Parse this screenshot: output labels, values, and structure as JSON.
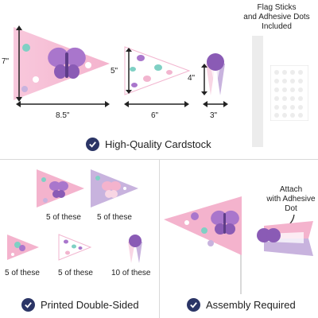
{
  "colors": {
    "pink": "#f2b5cf",
    "light_pink": "#f8d6e4",
    "lavender": "#c8b3de",
    "purple": "#8a5bb5",
    "teal": "#7fd0c4",
    "navy": "#2b3566"
  },
  "top": {
    "dims": {
      "large_height": "7\"",
      "large_width": "8.5\"",
      "medium_height": "5\"",
      "medium_width": "6\"",
      "small_height": "4\"",
      "small_width": "3\""
    },
    "flag_sticks_label": "Flag Sticks\nand Adhesive Dots\nIncluded",
    "feature": "High-Quality Cardstock"
  },
  "bottom_left": {
    "counts": [
      "5 of these",
      "5 of these",
      "5 of these",
      "5 of these",
      "10 of these"
    ],
    "feature": "Printed Double-Sided"
  },
  "bottom_right": {
    "attach_label": "Attach\nwith Adhesive\nDot",
    "feature": "Assembly Required"
  },
  "icons": [
    "checkmark-icon",
    "butterfly-icon",
    "flower-icon"
  ]
}
